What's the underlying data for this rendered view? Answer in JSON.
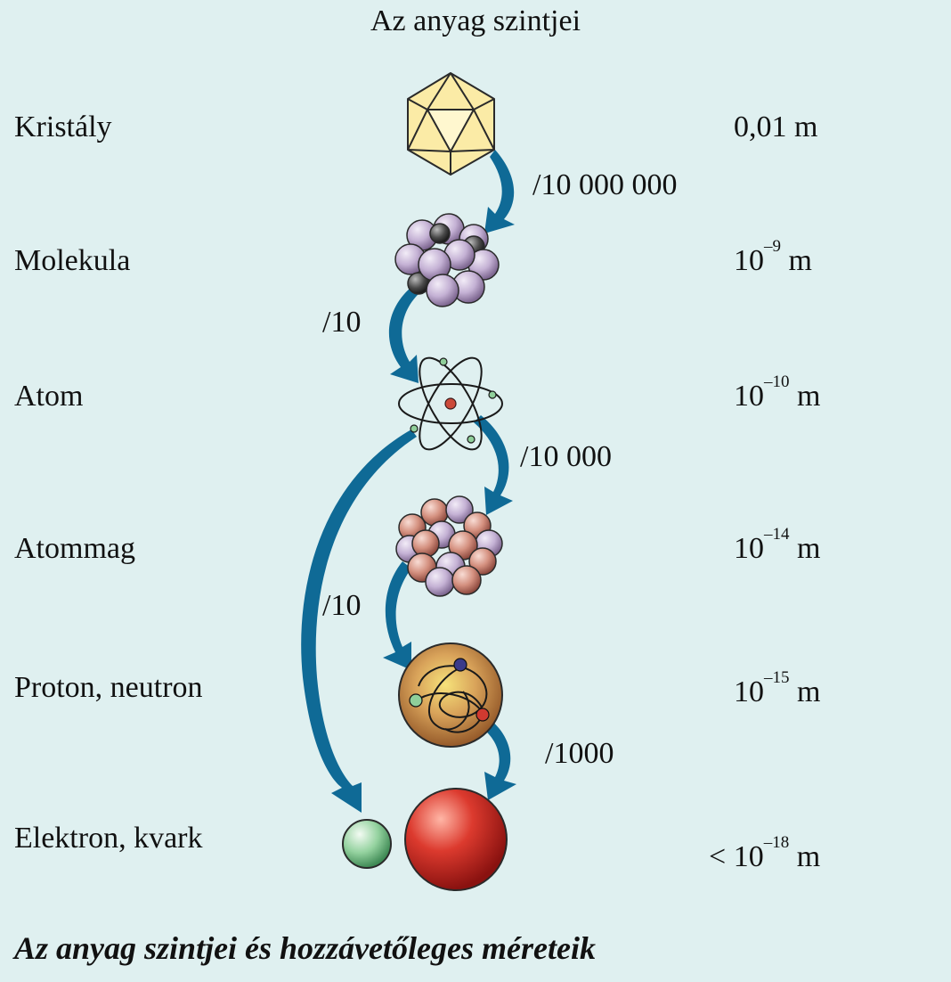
{
  "title": "Az anyag szintjei",
  "levels": [
    {
      "name": "Kristály",
      "size_base": "0,01 m",
      "size_exp": ""
    },
    {
      "name": "Molekula",
      "size_base": "10",
      "size_exp": "–9",
      "unit": " m"
    },
    {
      "name": "Atom",
      "size_base": "10",
      "size_exp": "–10",
      "unit": " m"
    },
    {
      "name": "Atommag",
      "size_base": "10",
      "size_exp": "–14",
      "unit": " m"
    },
    {
      "name": "Proton, neutron",
      "size_base": "10",
      "size_exp": "–15",
      "unit": " m"
    },
    {
      "name": "Elektron, kvark",
      "size_prefix": "< ",
      "size_base": "10",
      "size_exp": "–18",
      "unit": " m"
    }
  ],
  "ratios": {
    "r1": "/10 000 000",
    "r2": "/10",
    "r3": "/10 000",
    "r4": "/10",
    "r5": "/1000"
  },
  "caption": "Az anyag szintjei és hozzávetőleges méreteik",
  "colors": {
    "background": "#dff0f0",
    "arrow": "#0f6a96",
    "crystal": "#fbeba6",
    "molecule": "#c9b6d6",
    "nucleus_proton": "#d89a8c",
    "nucleon": "#c8894a",
    "electron": "#8fcf9a",
    "quark": "#d03a30"
  }
}
